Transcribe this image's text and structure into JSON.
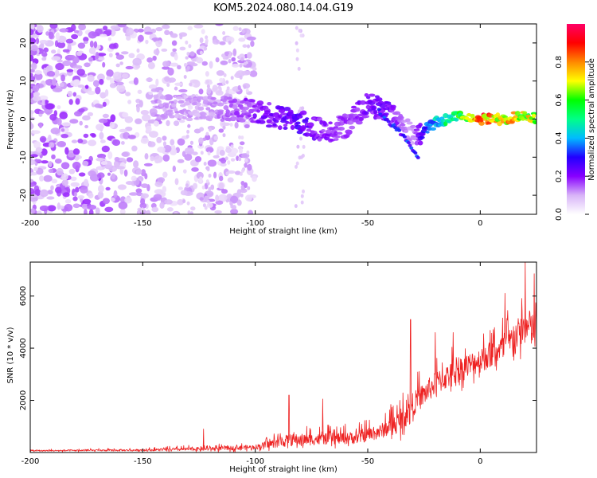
{
  "chart_data": [
    {
      "type": "heatmap",
      "title": "KOM5.2024.080.14.04.G19",
      "xlabel": "Height of straight line (km)",
      "ylabel": "Frequency (Hz)",
      "xlim": [
        -200,
        25
      ],
      "ylim": [
        -25,
        25
      ],
      "x_ticks": [
        -200,
        -150,
        -100,
        -50,
        0
      ],
      "y_ticks": [
        -20,
        -10,
        0,
        10,
        20
      ],
      "colorbar": {
        "label": "Normalized spectral amplitude",
        "range": [
          0,
          1
        ],
        "ticks": [
          0.0,
          0.2,
          0.4,
          0.6,
          0.8
        ],
        "colors": [
          "#ffffff",
          "#d8b4f8",
          "#8800ff",
          "#2200ff",
          "#00bbff",
          "#00ff88",
          "#00ff00",
          "#ffff00",
          "#ff8800",
          "#ff0000",
          "#ff0066"
        ]
      },
      "ridge": {
        "x": [
          -140,
          -120,
          -100,
          -80,
          -70,
          -60,
          -50,
          -40,
          -30,
          -25,
          -20,
          -10,
          0,
          10,
          20,
          25
        ],
        "frequency": [
          3,
          3,
          2,
          -1,
          -3,
          -2,
          4,
          2,
          -4,
          -3,
          -1,
          1,
          0,
          0,
          1,
          0
        ],
        "amplitude": [
          0.12,
          0.12,
          0.2,
          0.25,
          0.2,
          0.18,
          0.22,
          0.22,
          0.12,
          0.3,
          0.45,
          0.6,
          0.85,
          0.8,
          0.7,
          0.75
        ]
      },
      "branch": {
        "x": [
          -45,
          -40,
          -35,
          -30,
          -27
        ],
        "frequency": [
          2,
          -1,
          -4,
          -8,
          -10
        ]
      }
    },
    {
      "type": "line",
      "xlabel": "Height of straight line (km)",
      "ylabel": "SNR (10 * v/v)",
      "xlim": [
        -200,
        25
      ],
      "ylim": [
        0,
        7300
      ],
      "x_ticks": [
        -200,
        -150,
        -100,
        -50,
        0
      ],
      "y_ticks": [
        2000,
        4000,
        6000
      ],
      "color": "#ee2222",
      "trend": {
        "x": [
          -200,
          -150,
          -120,
          -100,
          -85,
          -70,
          -55,
          -45,
          -35,
          -30,
          -20,
          -10,
          0,
          10,
          20,
          25
        ],
        "mean": [
          60,
          80,
          120,
          180,
          400,
          450,
          500,
          700,
          1100,
          1700,
          2500,
          3000,
          3400,
          3800,
          4600,
          4400
        ],
        "spread": [
          80,
          120,
          250,
          300,
          800,
          700,
          800,
          900,
          1400,
          1500,
          1500,
          1600,
          1600,
          1800,
          2200,
          2400
        ]
      },
      "peaks": [
        {
          "x": -123,
          "y": 900
        },
        {
          "x": -85,
          "y": 2200
        },
        {
          "x": -70,
          "y": 2050
        },
        {
          "x": -31,
          "y": 5100
        },
        {
          "x": -20,
          "y": 4600
        },
        {
          "x": -12,
          "y": 4600
        },
        {
          "x": 11,
          "y": 6100
        },
        {
          "x": 20,
          "y": 7300
        },
        {
          "x": 24,
          "y": 6850
        }
      ]
    }
  ]
}
